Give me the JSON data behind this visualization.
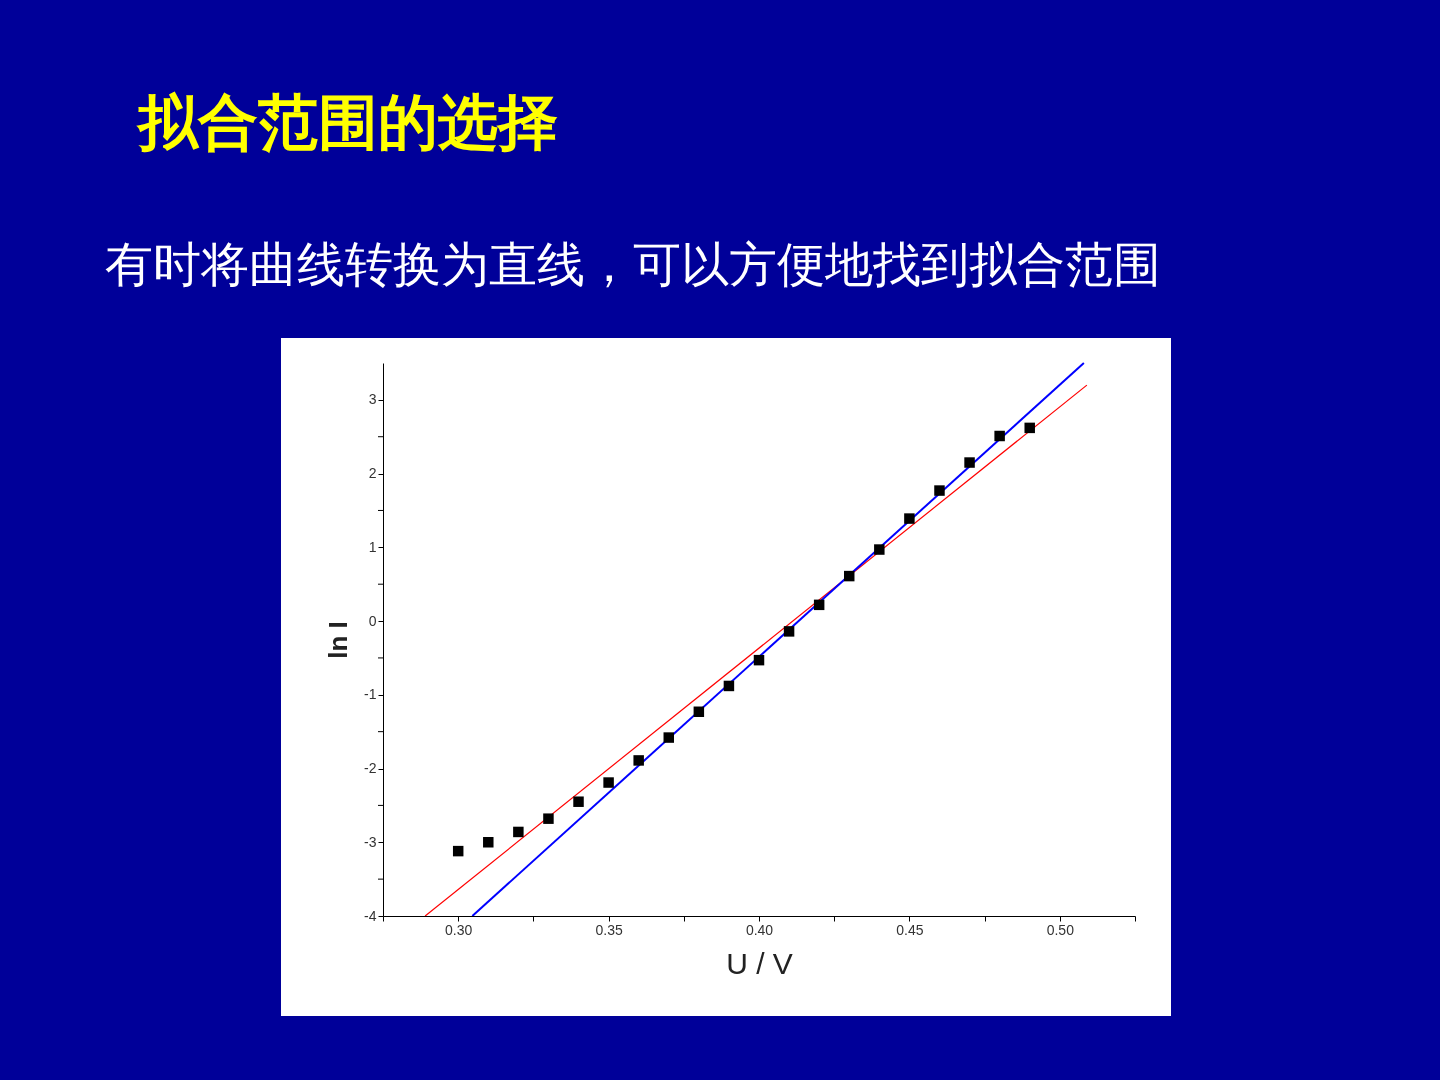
{
  "chart_data": {
    "type": "scatter",
    "title": "拟合范围的选择",
    "subtitle": "有时将曲线转换为直线，可以方便地找到拟合范围",
    "xlabel": "U / V",
    "ylabel": "ln I",
    "xlim": [
      0.275,
      0.525
    ],
    "ylim": [
      -4,
      3.5
    ],
    "xticks": [
      {
        "value": 0.275,
        "label": null
      },
      {
        "value": 0.3,
        "label": "0.30"
      },
      {
        "value": 0.325,
        "label": null
      },
      {
        "value": 0.35,
        "label": "0.35"
      },
      {
        "value": 0.375,
        "label": null
      },
      {
        "value": 0.4,
        "label": "0.40"
      },
      {
        "value": 0.425,
        "label": null
      },
      {
        "value": 0.45,
        "label": "0.45"
      },
      {
        "value": 0.475,
        "label": null
      },
      {
        "value": 0.5,
        "label": "0.50"
      },
      {
        "value": 0.525,
        "label": null
      }
    ],
    "yticks": [
      -4,
      {
        "value": -3.5,
        "label": null
      },
      -3,
      {
        "value": -2.5,
        "label": null
      },
      -2,
      {
        "value": -1.5,
        "label": null
      },
      -1,
      {
        "value": -0.5,
        "label": null
      },
      0,
      {
        "value": 0.5,
        "label": null
      },
      1,
      {
        "value": 1.5,
        "label": null
      },
      2,
      {
        "value": 2.5,
        "label": null
      },
      3
    ],
    "series": [
      {
        "type": "line",
        "color": "#ff0000",
        "line_style": "solid",
        "x": [
          0.289,
          0.509
        ],
        "values": [
          -4,
          3.2
        ]
      },
      {
        "type": "line",
        "color": "#0000ff",
        "line_style": "solid",
        "x": [
          0.3047,
          0.508
        ],
        "values": [
          -4,
          3.5
        ]
      },
      {
        "color": "#000000",
        "marker": "square",
        "x": [
          0.3,
          0.31,
          0.32,
          0.33,
          0.34,
          0.35,
          0.36,
          0.37,
          0.38,
          0.39,
          0.4,
          0.41,
          0.42,
          0.43,
          0.44,
          0.45,
          0.46,
          0.47,
          0.48,
          0.49
        ],
        "values": [
          -3.12,
          -3.0,
          -2.86,
          -2.68,
          -2.45,
          -2.19,
          -1.89,
          -1.58,
          -1.23,
          -0.88,
          -0.53,
          -0.14,
          0.22,
          0.61,
          0.97,
          1.39,
          1.77,
          2.15,
          2.51,
          2.62
        ]
      }
    ]
  }
}
